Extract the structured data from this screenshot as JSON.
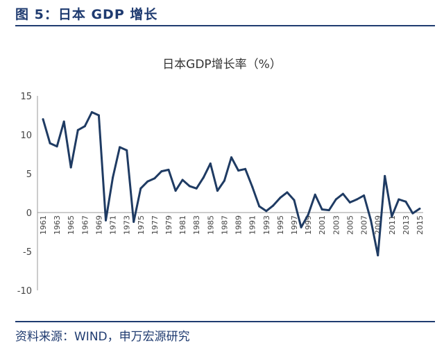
{
  "figure": {
    "caption": "图 5：日本 GDP 增长",
    "source": "资料来源：WIND，申万宏源研究"
  },
  "colors": {
    "line": "#1f3b63",
    "accent": "#1f3b70",
    "axis": "#999999"
  },
  "chart_data": {
    "type": "line",
    "title": "日本GDP增长率（%）",
    "xlabel": "",
    "ylabel": "",
    "ylim": [
      -10,
      15
    ],
    "yticks": [
      15,
      10,
      5,
      0,
      -5,
      -10
    ],
    "grid": false,
    "legend": "none",
    "x_tick_labels": [
      "1961",
      "1963",
      "1965",
      "1967",
      "1969",
      "1971",
      "1973",
      "1975",
      "1977",
      "1979",
      "1981",
      "1983",
      "1985",
      "1987",
      "1989",
      "1991",
      "1993",
      "1995",
      "1997",
      "1999",
      "2001",
      "2003",
      "2005",
      "2007",
      "2009",
      "2011",
      "2013",
      "2015"
    ],
    "x": [
      1961,
      1962,
      1963,
      1964,
      1965,
      1966,
      1967,
      1968,
      1969,
      1970,
      1971,
      1972,
      1973,
      1974,
      1975,
      1976,
      1977,
      1978,
      1979,
      1980,
      1981,
      1982,
      1983,
      1984,
      1985,
      1986,
      1987,
      1988,
      1989,
      1990,
      1991,
      1992,
      1993,
      1994,
      1995,
      1996,
      1997,
      1998,
      1999,
      2000,
      2001,
      2002,
      2003,
      2004,
      2005,
      2006,
      2007,
      2008,
      2009,
      2010,
      2011,
      2012,
      2013,
      2014,
      2015
    ],
    "series": [
      {
        "values": [
          12.0,
          8.9,
          8.5,
          11.7,
          5.8,
          10.6,
          11.1,
          12.9,
          12.5,
          -1.0,
          4.5,
          8.4,
          8.0,
          -1.2,
          3.1,
          4.0,
          4.4,
          5.3,
          5.5,
          2.8,
          4.2,
          3.4,
          3.1,
          4.5,
          6.3,
          2.8,
          4.1,
          7.1,
          5.4,
          5.6,
          3.3,
          0.8,
          0.2,
          0.9,
          1.9,
          2.6,
          1.6,
          -1.9,
          -0.3,
          2.3,
          0.4,
          0.3,
          1.7,
          2.4,
          1.3,
          1.7,
          2.2,
          -1.0,
          -5.5,
          4.7,
          -0.5,
          1.7,
          1.4,
          -0.1,
          0.5
        ]
      }
    ]
  }
}
